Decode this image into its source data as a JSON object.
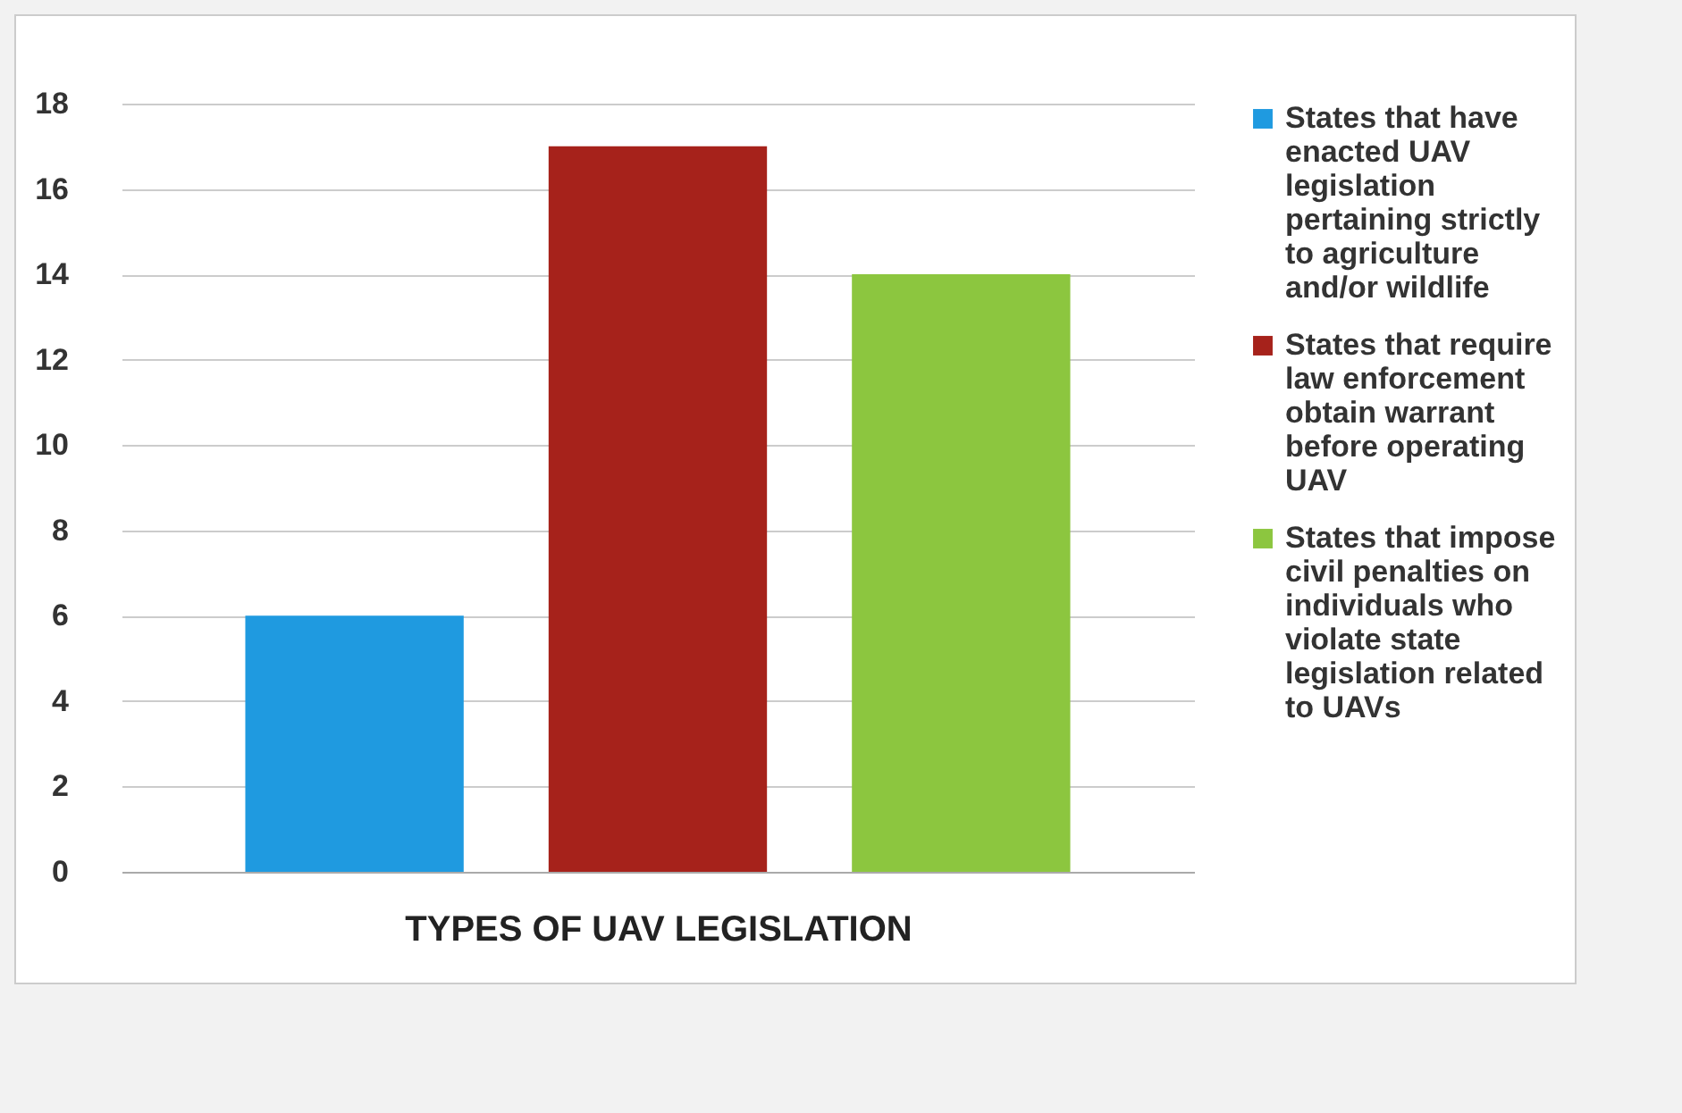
{
  "chart_data": {
    "type": "bar",
    "xlabel": "TYPES OF UAV LEGISLATION",
    "categories": [
      null
    ],
    "series": [
      {
        "name": "States that have enacted UAV legislation pertaining strictly to agriculture and/or wildlife",
        "color": "#1f9ae0",
        "values": [
          6
        ]
      },
      {
        "name": "States that require law enforcement obtain warrant before operating UAV",
        "color": "#a6221b",
        "values": [
          17
        ]
      },
      {
        "name": "States that impose civil penalties on individuals who violate state legislation related to UAVs",
        "color": "#8cc63f",
        "values": [
          14
        ]
      }
    ],
    "ylim": [
      0,
      18
    ],
    "yticks": [
      0,
      2,
      4,
      6,
      8,
      10,
      12,
      14,
      16,
      18
    ],
    "grid": "y",
    "legend": "right"
  }
}
